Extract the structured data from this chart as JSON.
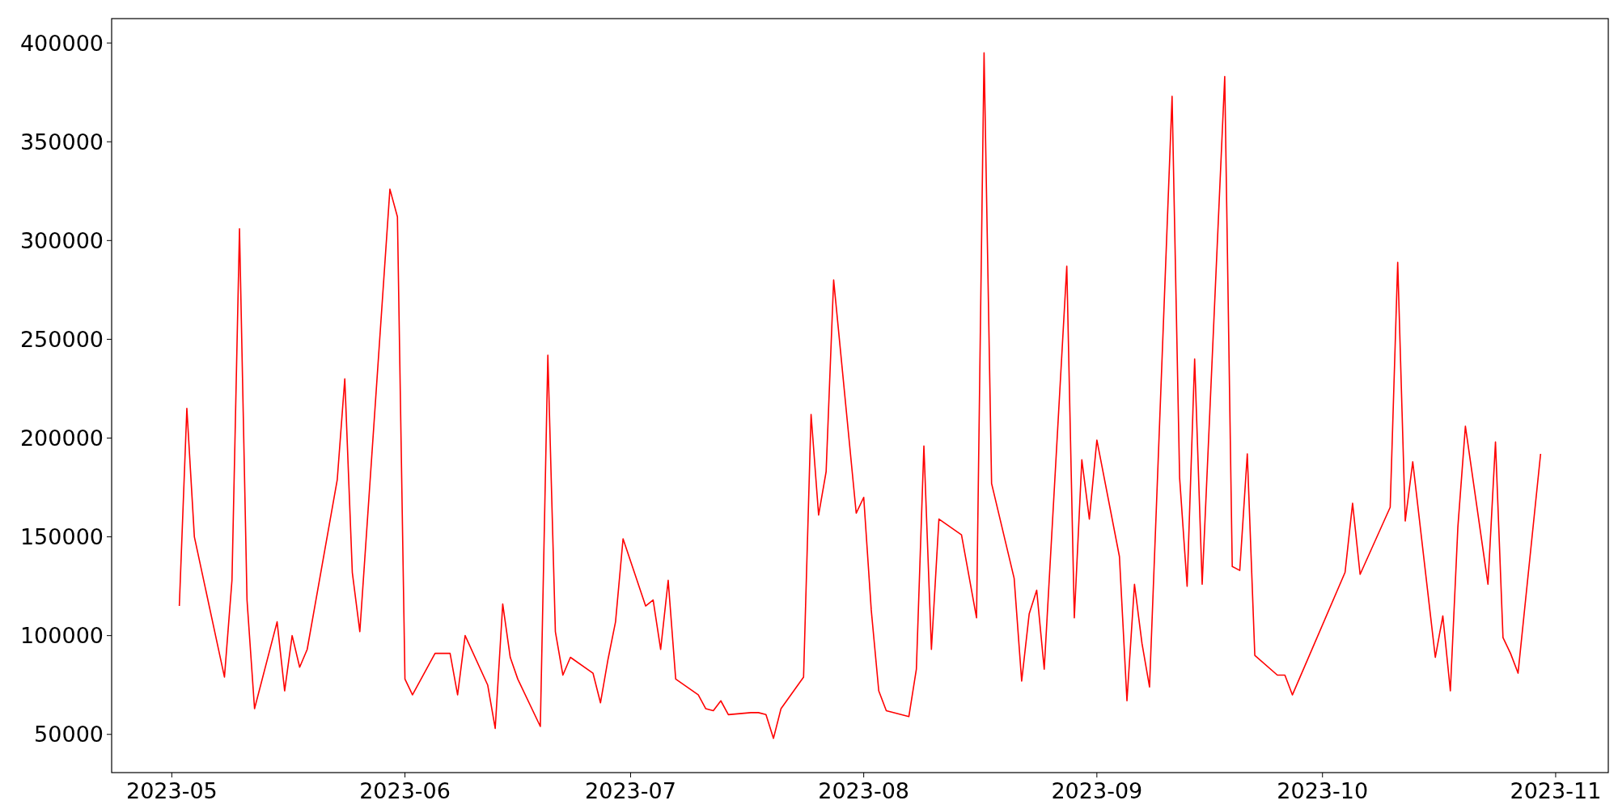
{
  "chart_data": {
    "type": "line",
    "xlim": [
      "2023-04-23",
      "2023-11-08"
    ],
    "ylim": [
      30650,
      412350
    ],
    "xticks": [
      {
        "value": "2023-05-01",
        "label": "2023-05"
      },
      {
        "value": "2023-06-01",
        "label": "2023-06"
      },
      {
        "value": "2023-07-01",
        "label": "2023-07"
      },
      {
        "value": "2023-08-01",
        "label": "2023-08"
      },
      {
        "value": "2023-09-01",
        "label": "2023-09"
      },
      {
        "value": "2023-10-01",
        "label": "2023-10"
      },
      {
        "value": "2023-11-01",
        "label": "2023-11"
      }
    ],
    "yticks": [
      50000,
      100000,
      150000,
      200000,
      250000,
      300000,
      350000,
      400000
    ],
    "grid": false,
    "marker": "none",
    "line_style": "solid",
    "x": [
      "2023-05-02",
      "2023-05-03",
      "2023-05-04",
      "2023-05-08",
      "2023-05-09",
      "2023-05-10",
      "2023-05-11",
      "2023-05-12",
      "2023-05-15",
      "2023-05-16",
      "2023-05-17",
      "2023-05-18",
      "2023-05-19",
      "2023-05-23",
      "2023-05-24",
      "2023-05-25",
      "2023-05-26",
      "2023-05-30",
      "2023-05-31",
      "2023-06-01",
      "2023-06-02",
      "2023-06-05",
      "2023-06-07",
      "2023-06-08",
      "2023-06-09",
      "2023-06-12",
      "2023-06-13",
      "2023-06-14",
      "2023-06-15",
      "2023-06-16",
      "2023-06-19",
      "2023-06-20",
      "2023-06-21",
      "2023-06-22",
      "2023-06-23",
      "2023-06-26",
      "2023-06-27",
      "2023-06-28",
      "2023-06-29",
      "2023-06-30",
      "2023-07-03",
      "2023-07-04",
      "2023-07-05",
      "2023-07-06",
      "2023-07-07",
      "2023-07-10",
      "2023-07-11",
      "2023-07-12",
      "2023-07-13",
      "2023-07-14",
      "2023-07-17",
      "2023-07-18",
      "2023-07-19",
      "2023-07-20",
      "2023-07-21",
      "2023-07-24",
      "2023-07-25",
      "2023-07-26",
      "2023-07-27",
      "2023-07-28",
      "2023-07-31",
      "2023-08-01",
      "2023-08-02",
      "2023-08-03",
      "2023-08-04",
      "2023-08-07",
      "2023-08-08",
      "2023-08-09",
      "2023-08-10",
      "2023-08-11",
      "2023-08-14",
      "2023-08-16",
      "2023-08-17",
      "2023-08-18",
      "2023-08-21",
      "2023-08-22",
      "2023-08-23",
      "2023-08-24",
      "2023-08-25",
      "2023-08-28",
      "2023-08-29",
      "2023-08-30",
      "2023-08-31",
      "2023-09-01",
      "2023-09-04",
      "2023-09-05",
      "2023-09-06",
      "2023-09-07",
      "2023-09-08",
      "2023-09-11",
      "2023-09-12",
      "2023-09-13",
      "2023-09-14",
      "2023-09-15",
      "2023-09-18",
      "2023-09-19",
      "2023-09-20",
      "2023-09-21",
      "2023-09-22",
      "2023-09-25",
      "2023-09-26",
      "2023-09-27",
      "2023-10-04",
      "2023-10-05",
      "2023-10-06",
      "2023-10-10",
      "2023-10-11",
      "2023-10-12",
      "2023-10-13",
      "2023-10-16",
      "2023-10-17",
      "2023-10-18",
      "2023-10-19",
      "2023-10-20",
      "2023-10-23",
      "2023-10-24",
      "2023-10-25",
      "2023-10-26",
      "2023-10-27",
      "2023-10-30"
    ],
    "series": [
      {
        "color": "#ff0000",
        "values": [
          115000,
          215000,
          150000,
          79000,
          128000,
          306000,
          118000,
          63000,
          107000,
          72000,
          100000,
          84000,
          93000,
          179000,
          230000,
          132000,
          102000,
          326000,
          312000,
          78000,
          70000,
          91000,
          91000,
          70000,
          100000,
          75000,
          53000,
          116000,
          89000,
          78000,
          54000,
          242000,
          102000,
          80000,
          89000,
          81000,
          66000,
          88000,
          107000,
          149000,
          115000,
          118000,
          93000,
          128000,
          78000,
          70000,
          63000,
          62000,
          67000,
          60000,
          61000,
          61000,
          60000,
          48000,
          63000,
          79000,
          212000,
          161000,
          183000,
          280000,
          162000,
          170000,
          113000,
          72000,
          62000,
          59000,
          83000,
          196000,
          93000,
          159000,
          151000,
          109000,
          395000,
          177000,
          129000,
          77000,
          111000,
          123000,
          83000,
          287000,
          109000,
          189000,
          159000,
          199000,
          140000,
          67000,
          126000,
          96000,
          74000,
          373000,
          180000,
          125000,
          240000,
          126000,
          383000,
          135000,
          133000,
          192000,
          90000,
          80000,
          80000,
          70000,
          132000,
          167000,
          131000,
          165000,
          289000,
          158000,
          188000,
          89000,
          110000,
          72000,
          155000,
          206000,
          126000,
          198000,
          99000,
          91000,
          81000,
          192000
        ]
      }
    ]
  }
}
